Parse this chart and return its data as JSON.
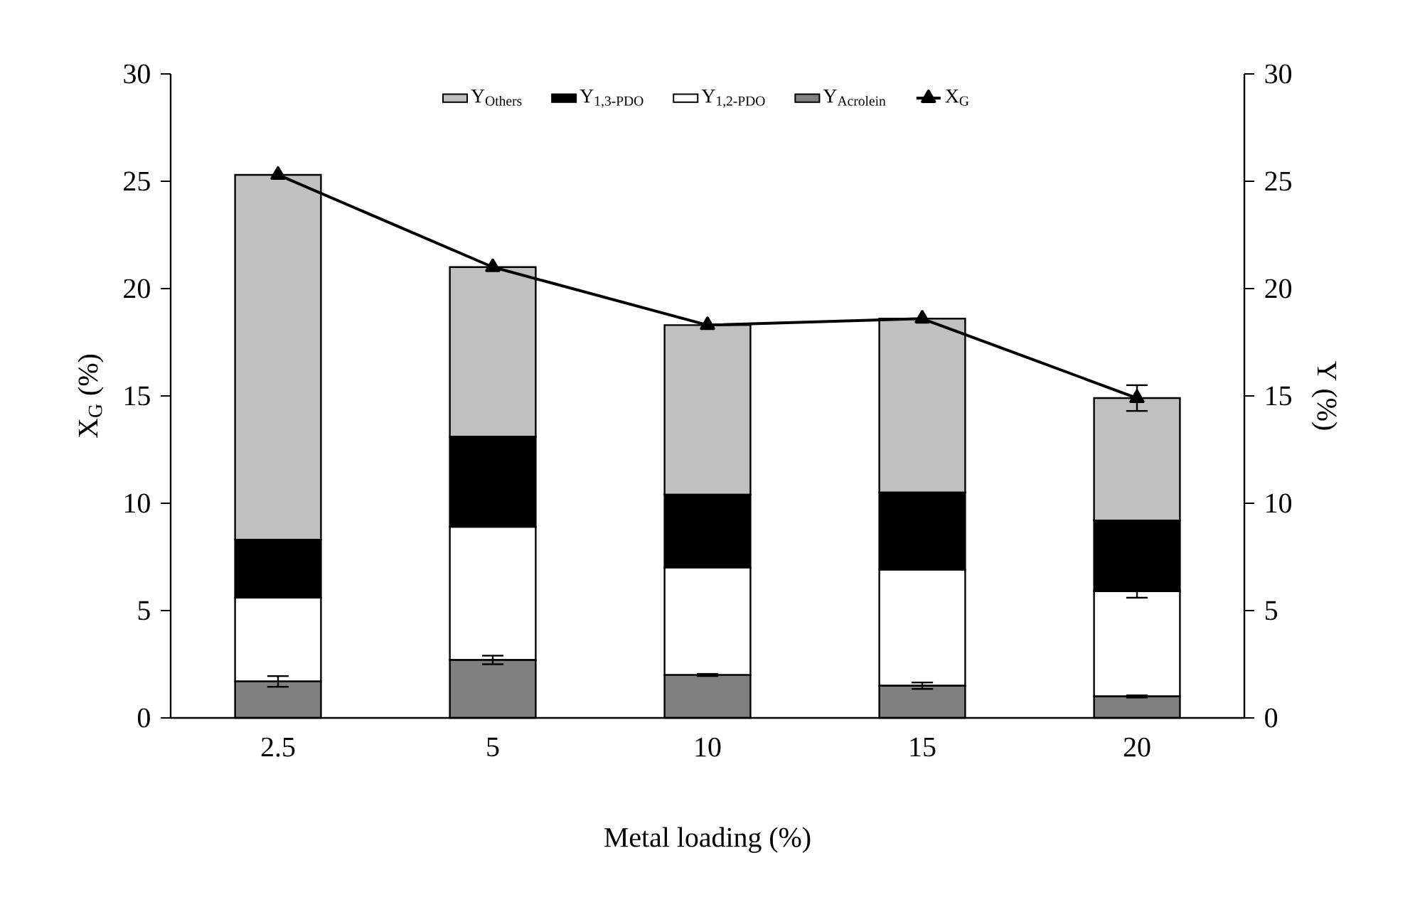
{
  "chart_data": {
    "type": "bar",
    "stacked": true,
    "xlabel": "Metal loading (%)",
    "ylabel": "X$_{G}$ (%)",
    "y2label": "Y (%)",
    "categories": [
      "2.5",
      "5",
      "10",
      "15",
      "20"
    ],
    "series": [
      {
        "name": "Y$_{Acrolein}$",
        "color": "#808080",
        "axis": "y2",
        "values": [
          1.7,
          2.7,
          2.0,
          1.5,
          1.0
        ],
        "errors": [
          0.25,
          0.2,
          0.05,
          0.15,
          0.05
        ]
      },
      {
        "name": "Y$_{1,2-PDO}$",
        "color": "#ffffff",
        "axis": "y2",
        "values": [
          3.9,
          6.2,
          5.0,
          5.4,
          4.9
        ],
        "errors": [
          null,
          null,
          null,
          null,
          0.3
        ]
      },
      {
        "name": "Y$_{1,3-PDO}$",
        "color": "#000000",
        "axis": "y2",
        "values": [
          2.7,
          4.2,
          3.4,
          3.6,
          3.3
        ]
      },
      {
        "name": "Y$_{Others}$",
        "color": "#c0c0c0",
        "axis": "y2",
        "values": [
          17.0,
          7.9,
          7.9,
          8.1,
          5.7
        ]
      },
      {
        "name": "X$_{G}$",
        "type": "line",
        "color": "#000000",
        "axis": "y",
        "marker": "triangle",
        "line_style": "solid",
        "values": [
          25.3,
          21.0,
          18.3,
          18.6,
          14.9
        ],
        "errors": [
          null,
          null,
          null,
          null,
          0.6
        ]
      }
    ],
    "ylim": [
      0,
      30
    ],
    "yticks": [
      0,
      5,
      10,
      15,
      20,
      25,
      30
    ],
    "y2lim": [
      0,
      30
    ],
    "y2ticks": [
      0,
      5,
      10,
      15,
      20,
      25,
      30
    ],
    "legend": "top"
  }
}
